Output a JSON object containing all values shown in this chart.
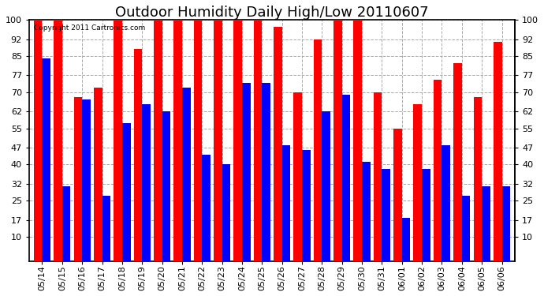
{
  "title": "Outdoor Humidity Daily High/Low 20110607",
  "copyright": "Copyright 2011 Cartronics.com",
  "dates": [
    "05/14",
    "05/15",
    "05/16",
    "05/17",
    "05/18",
    "05/19",
    "05/20",
    "05/21",
    "05/22",
    "05/23",
    "05/24",
    "05/25",
    "05/26",
    "05/27",
    "05/28",
    "05/29",
    "05/30",
    "05/31",
    "06/01",
    "06/02",
    "06/03",
    "06/04",
    "06/05",
    "06/06"
  ],
  "highs": [
    100,
    100,
    68,
    72,
    100,
    88,
    100,
    100,
    100,
    100,
    100,
    100,
    97,
    70,
    92,
    100,
    100,
    70,
    55,
    65,
    75,
    82,
    68,
    91
  ],
  "lows": [
    84,
    31,
    67,
    27,
    57,
    65,
    62,
    72,
    44,
    40,
    74,
    74,
    48,
    46,
    62,
    69,
    41,
    38,
    18,
    38,
    48,
    27,
    31,
    31
  ],
  "high_color": "#ff0000",
  "low_color": "#0000ff",
  "background_color": "#ffffff",
  "grid_color": "#aaaaaa",
  "yticks": [
    10,
    17,
    25,
    32,
    40,
    47,
    55,
    62,
    70,
    77,
    85,
    92,
    100
  ],
  "ymin": 0,
  "ymax": 100,
  "ylim_display_min": 10,
  "title_fontsize": 13,
  "tick_fontsize": 8
}
